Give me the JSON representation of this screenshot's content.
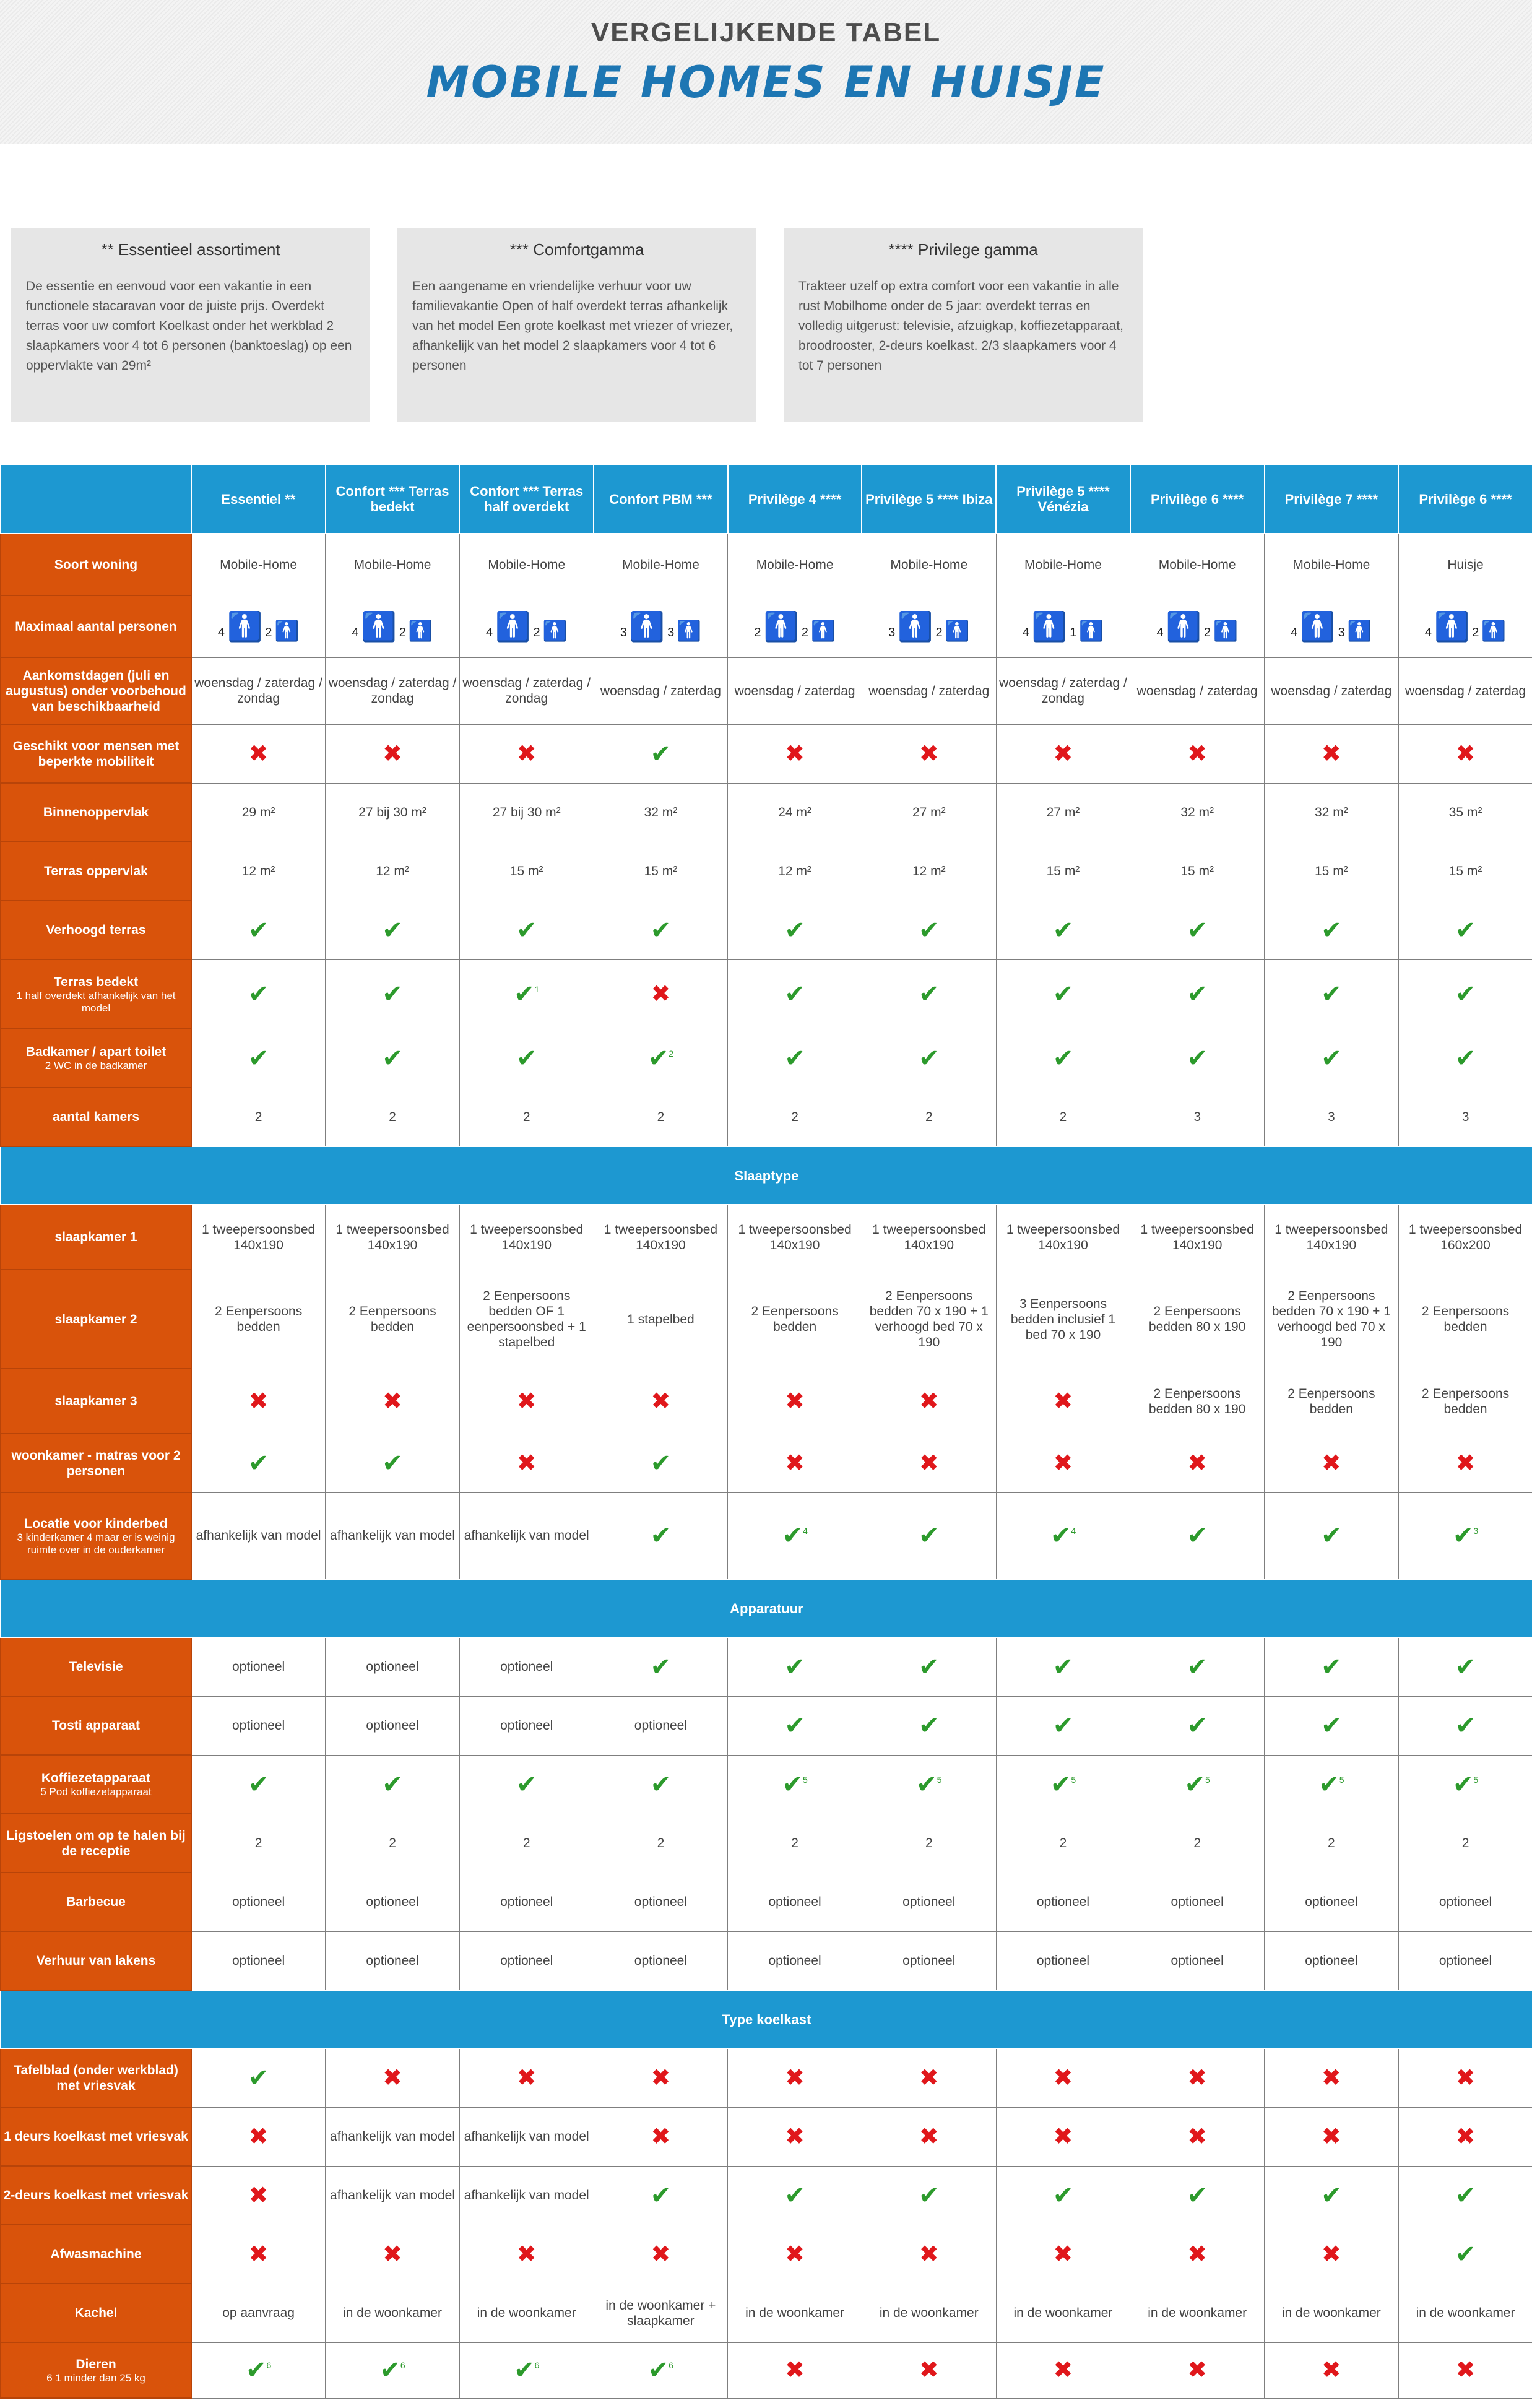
{
  "header": {
    "subtitle": "VERGELIJKENDE TABEL",
    "title": "MOBILE HOMES EN HUISJE"
  },
  "ranges": [
    {
      "title": "** Essentieel assortiment",
      "text": "De essentie en eenvoud voor een vakantie in een functionele stacaravan voor de juiste prijs. Overdekt terras voor uw comfort Koelkast onder het werkblad 2 slaapkamers voor 4 tot 6 personen (banktoeslag) op een oppervlakte van 29m²"
    },
    {
      "title": "*** Comfortgamma",
      "text": "Een aangename en vriendelijke verhuur voor uw familievakantie Open of half overdekt terras afhankelijk van het model Een grote koelkast met vriezer of vriezer, afhankelijk van het model 2 slaapkamers voor 4 tot 6 personen"
    },
    {
      "title": "**** Privilege gamma",
      "text": "Trakteer uzelf op extra comfort voor een vakantie in alle rust Mobilhome onder de 5 jaar: overdekt terras en volledig uitgerust: televisie, afzuigkap, koffiezetapparaat, broodrooster, 2-deurs koelkast. 2/3 slaapkamers voor 4 tot 7 personen"
    }
  ],
  "columns": [
    "Essentiel **",
    "Confort *** Terras bedekt",
    "Confort *** Terras half overdekt",
    "Confort PBM ***",
    "Privilège 4 ****",
    "Privilège 5 **** Ibiza",
    "Privilège 5 **** Vénézia",
    "Privilège 6 ****",
    "Privilège 7 ****",
    "Privilège 6 ****"
  ],
  "sections": [
    {
      "title": "",
      "rows": [
        {
          "label": "Soort woning",
          "h": 100,
          "cells": [
            "Mobile-Home",
            "Mobile-Home",
            "Mobile-Home",
            "Mobile-Home",
            "Mobile-Home",
            "Mobile-Home",
            "Mobile-Home",
            "Mobile-Home",
            "Mobile-Home",
            "Huisje"
          ]
        },
        {
          "label": "Maximaal aantal personen",
          "h": 100,
          "cells": [
            "@4|2",
            "@4|2",
            "@4|2",
            "@3|3",
            "@2|2",
            "@3|2",
            "@4|1",
            "@4|2",
            "@4|3",
            "@4|2"
          ]
        },
        {
          "label": "Aankomstdagen (juli en augustus) onder voorbehoud van beschikbaarheid",
          "h": 108,
          "cells": [
            "woensdag / zaterdag / zondag",
            "woensdag / zaterdag / zondag",
            "woensdag / zaterdag / zondag",
            "woensdag / zaterdag",
            "woensdag / zaterdag",
            "woensdag / zaterdag",
            "woensdag / zaterdag / zondag",
            "woensdag / zaterdag",
            "woensdag / zaterdag",
            "woensdag / zaterdag"
          ]
        },
        {
          "label": "Geschikt voor mensen met beperkte mobiliteit",
          "h": 95,
          "cells": [
            "no",
            "no",
            "no",
            "yes",
            "no",
            "no",
            "no",
            "no",
            "no",
            "no"
          ]
        },
        {
          "label": "Binnenoppervlak",
          "h": 95,
          "cells": [
            "29 m²",
            "27 bij 30 m²",
            "27 bij 30 m²",
            "32 m²",
            "24 m²",
            "27 m²",
            "27 m²",
            "32 m²",
            "32 m²",
            "35 m²"
          ]
        },
        {
          "label": "Terras oppervlak",
          "h": 95,
          "cells": [
            "12 m²",
            "12 m²",
            "15 m²",
            "15 m²",
            "12 m²",
            "12 m²",
            "15 m²",
            "15 m²",
            "15 m²",
            "15 m²"
          ]
        },
        {
          "label": "Verhoogd terras",
          "h": 95,
          "cells": [
            "yes",
            "yes",
            "yes",
            "yes",
            "yes",
            "yes",
            "yes",
            "yes",
            "yes",
            "yes"
          ]
        },
        {
          "label": "Terras bedekt",
          "note": "1 half overdekt afhankelijk van het model",
          "h": 112,
          "cells": [
            "yes",
            "yes",
            "yes1",
            "no",
            "yes",
            "yes",
            "yes",
            "yes",
            "yes",
            "yes"
          ]
        },
        {
          "label": "Badkamer / apart toilet",
          "note": "2 WC in de badkamer",
          "h": 95,
          "cells": [
            "yes",
            "yes",
            "yes",
            "yes2",
            "yes",
            "yes",
            "yes",
            "yes",
            "yes",
            "yes"
          ]
        },
        {
          "label": "aantal kamers",
          "h": 95,
          "cells": [
            "2",
            "2",
            "2",
            "2",
            "2",
            "2",
            "2",
            "3",
            "3",
            "3"
          ]
        }
      ]
    },
    {
      "title": "Slaaptype",
      "rows": [
        {
          "label": "slaapkamer 1",
          "h": 105,
          "cells": [
            "1 tweepersoonsbed 140x190",
            "1 tweepersoonsbed 140x190",
            "1 tweepersoonsbed 140x190",
            "1 tweepersoonsbed 140x190",
            "1 tweepersoonsbed 140x190",
            "1 tweepersoonsbed 140x190",
            "1 tweepersoonsbed 140x190",
            "1 tweepersoonsbed 140x190",
            "1 tweepersoonsbed 140x190",
            "1 tweepersoonsbed 160x200"
          ]
        },
        {
          "label": "slaapkamer 2",
          "h": 160,
          "cells": [
            "2 Eenpersoons bedden",
            "2 Eenpersoons bedden",
            "2 Eenpersoons bedden OF 1 eenpersoonsbed + 1 stapelbed",
            "1 stapelbed",
            "2 Eenpersoons bedden",
            "2 Eenpersoons bedden 70 x 190 + 1 verhoogd bed 70 x 190",
            "3 Eenpersoons bedden inclusief 1 bed 70 x 190",
            "2 Eenpersoons bedden 80 x 190",
            "2 Eenpersoons bedden 70 x 190 + 1 verhoogd bed 70 x 190",
            "2 Eenpersoons bedden"
          ]
        },
        {
          "label": "slaapkamer 3",
          "h": 105,
          "cells": [
            "no",
            "no",
            "no",
            "no",
            "no",
            "no",
            "no",
            "2 Eenpersoons bedden 80 x 190",
            "2 Eenpersoons bedden",
            "2 Eenpersoons bedden"
          ]
        },
        {
          "label": "woonkamer - matras voor 2 personen",
          "h": 95,
          "cells": [
            "yes",
            "yes",
            "no",
            "yes",
            "no",
            "no",
            "no",
            "no",
            "no",
            "no"
          ]
        },
        {
          "label": "Locatie voor kinderbed",
          "note": "3 kinderkamer 4 maar er is weinig ruimte over in de ouderkamer",
          "h": 140,
          "cells": [
            "afhankelijk van model",
            "afhankelijk van model",
            "afhankelijk van model",
            "yes",
            "yes4",
            "yes",
            "yes4",
            "yes",
            "yes",
            "yes3"
          ]
        }
      ]
    },
    {
      "title": "Apparatuur",
      "rows": [
        {
          "label": "Televisie",
          "h": 95,
          "cells": [
            "optioneel",
            "optioneel",
            "optioneel",
            "yes",
            "yes",
            "yes",
            "yes",
            "yes",
            "yes",
            "yes"
          ]
        },
        {
          "label": "Tosti apparaat",
          "h": 95,
          "cells": [
            "optioneel",
            "optioneel",
            "optioneel",
            "optioneel",
            "yes",
            "yes",
            "yes",
            "yes",
            "yes",
            "yes"
          ]
        },
        {
          "label": "Koffiezetapparaat",
          "note": "5 Pod koffiezetapparaat",
          "h": 95,
          "cells": [
            "yes",
            "yes",
            "yes",
            "yes",
            "yes5",
            "yes5",
            "yes5",
            "yes5",
            "yes5",
            "yes5"
          ]
        },
        {
          "label": "Ligstoelen om op te halen bij de receptie",
          "h": 95,
          "cells": [
            "2",
            "2",
            "2",
            "2",
            "2",
            "2",
            "2",
            "2",
            "2",
            "2"
          ]
        },
        {
          "label": "Barbecue",
          "h": 95,
          "cells": [
            "optioneel",
            "optioneel",
            "optioneel",
            "optioneel",
            "optioneel",
            "optioneel",
            "optioneel",
            "optioneel",
            "optioneel",
            "optioneel"
          ]
        },
        {
          "label": "Verhuur van lakens",
          "h": 95,
          "cells": [
            "optioneel",
            "optioneel",
            "optioneel",
            "optioneel",
            "optioneel",
            "optioneel",
            "optioneel",
            "optioneel",
            "optioneel",
            "optioneel"
          ]
        }
      ]
    },
    {
      "title": "Type koelkast",
      "rows": [
        {
          "label": "Tafelblad (onder werkblad) met vriesvak",
          "h": 95,
          "cells": [
            "yes",
            "no",
            "no",
            "no",
            "no",
            "no",
            "no",
            "no",
            "no",
            "no"
          ]
        },
        {
          "label": "1 deurs koelkast met vriesvak",
          "h": 95,
          "cells": [
            "no",
            "afhankelijk van model",
            "afhankelijk van model",
            "no",
            "no",
            "no",
            "no",
            "no",
            "no",
            "no"
          ]
        },
        {
          "label": "2-deurs koelkast met vriesvak",
          "h": 95,
          "cells": [
            "no",
            "afhankelijk van model",
            "afhankelijk van model",
            "yes",
            "yes",
            "yes",
            "yes",
            "yes",
            "yes",
            "yes"
          ]
        },
        {
          "label": "Afwasmachine",
          "h": 95,
          "cells": [
            "no",
            "no",
            "no",
            "no",
            "no",
            "no",
            "no",
            "no",
            "no",
            "yes"
          ]
        },
        {
          "label": "Kachel",
          "h": 95,
          "cells": [
            "op aanvraag",
            "in de woonkamer",
            "in de woonkamer",
            "in de woonkamer + slaapkamer",
            "in de woonkamer",
            "in de woonkamer",
            "in de woonkamer",
            "in de woonkamer",
            "in de woonkamer",
            "in de woonkamer"
          ]
        },
        {
          "label": "Dieren",
          "note": "6 1 minder dan 25 kg",
          "h": 90,
          "cells": [
            "yes6",
            "yes6",
            "yes6",
            "yes6",
            "no",
            "no",
            "no",
            "no",
            "no",
            "no"
          ]
        }
      ]
    }
  ],
  "colors": {
    "accent": "#1d98d1",
    "label": "#d9530b",
    "yes": "#2c9a2c",
    "no": "#e0171b"
  },
  "icons": {
    "yes": "check-icon",
    "no": "cross-icon",
    "people": "person-icon"
  }
}
